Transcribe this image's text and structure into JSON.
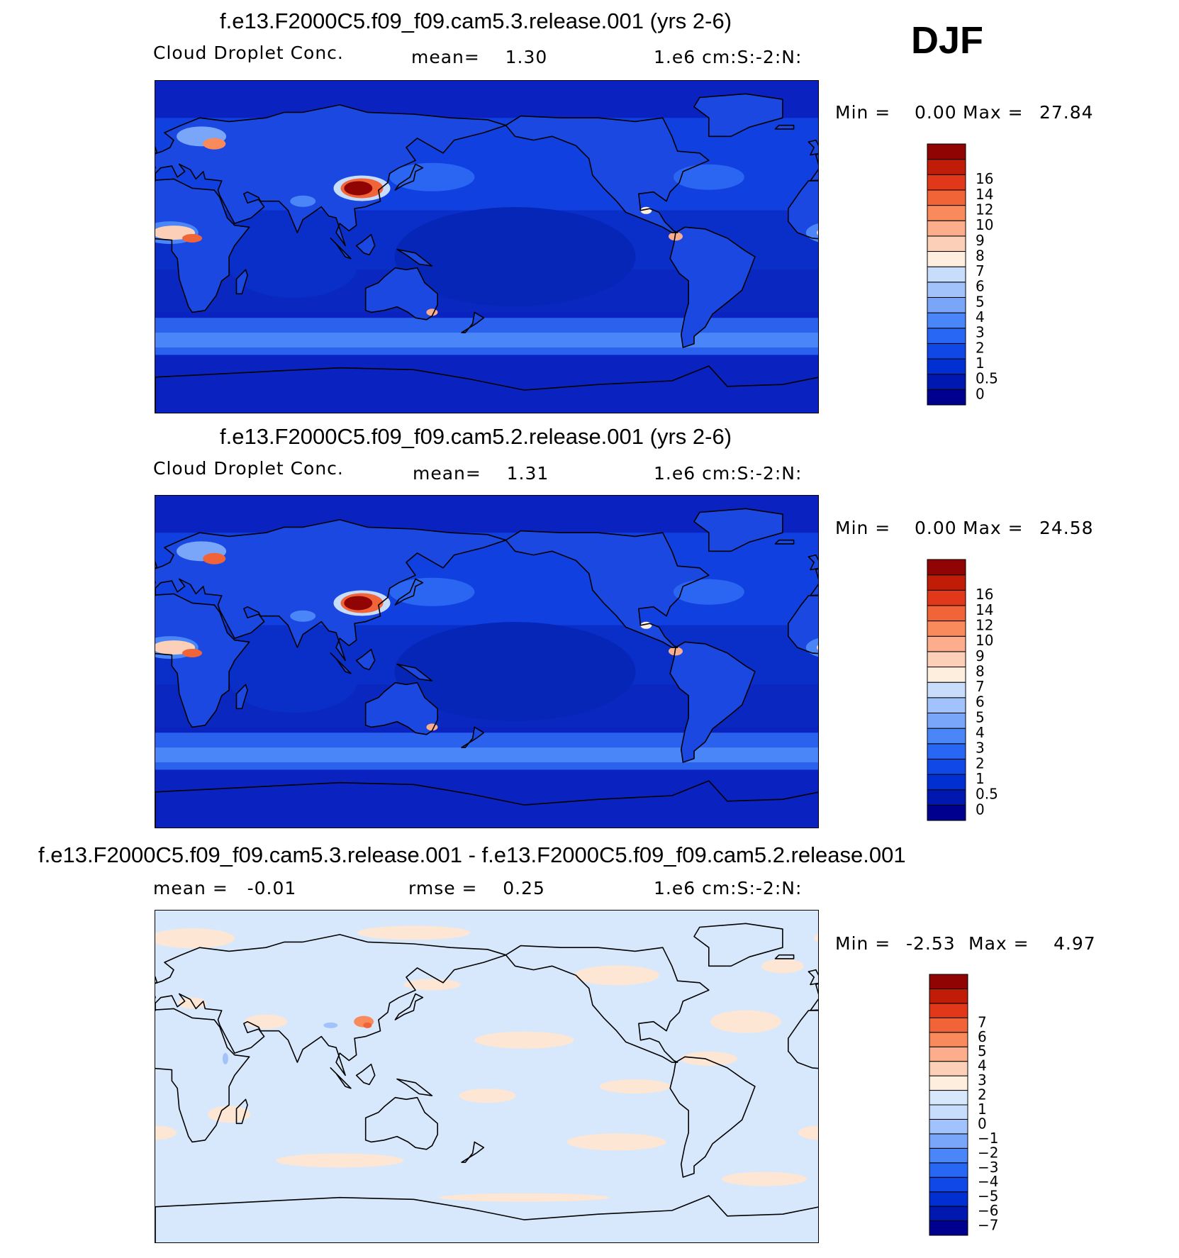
{
  "season": "DJF",
  "panels": [
    {
      "id": "p1",
      "title": "f.e13.F2000C5.f09_f09.cam5.3.release.001 (yrs 2-6)",
      "left_label": "Cloud Droplet Conc.",
      "center_label": "mean=    1.30",
      "right_label": "1.e6 cm:S:-2:N:",
      "minmax": {
        "min_label": "Min =",
        "min": "0.00",
        "max_label": "Max =",
        "max": "27.84"
      },
      "colorbar": {
        "colors": [
          "#00008f",
          "#0018b0",
          "#0030d2",
          "#1048e8",
          "#2866f4",
          "#4a86f8",
          "#7aa6fa",
          "#a2c2fc",
          "#c8dcfc",
          "#fdeede",
          "#fcd0b8",
          "#fcae8c",
          "#f88a5c",
          "#f06438",
          "#e03818",
          "#c01c08",
          "#900404"
        ],
        "labels": [
          "0",
          "0.5",
          "1",
          "2",
          "3",
          "4",
          "5",
          "6",
          "7",
          "8",
          "9",
          "10",
          "12",
          "14",
          "16"
        ]
      }
    },
    {
      "id": "p2",
      "title": "f.e13.F2000C5.f09_f09.cam5.2.release.001 (yrs 2-6)",
      "left_label": "Cloud Droplet Conc.",
      "center_label": "mean=    1.31",
      "right_label": "1.e6 cm:S:-2:N:",
      "minmax": {
        "min_label": "Min =",
        "min": "0.00",
        "max_label": "Max =",
        "max": "24.58"
      },
      "colorbar": {
        "colors": [
          "#00008f",
          "#0018b0",
          "#0030d2",
          "#1048e8",
          "#2866f4",
          "#4a86f8",
          "#7aa6fa",
          "#a2c2fc",
          "#c8dcfc",
          "#fdeede",
          "#fcd0b8",
          "#fcae8c",
          "#f88a5c",
          "#f06438",
          "#e03818",
          "#c01c08",
          "#900404"
        ],
        "labels": [
          "0",
          "0.5",
          "1",
          "2",
          "3",
          "4",
          "5",
          "6",
          "7",
          "8",
          "9",
          "10",
          "12",
          "14",
          "16"
        ]
      }
    },
    {
      "id": "p3",
      "title": "f.e13.F2000C5.f09_f09.cam5.3.release.001 - f.e13.F2000C5.f09_f09.cam5.2.release.001",
      "left_label": "mean =   -0.01",
      "center_label": "rmse =    0.25",
      "right_label": "1.e6 cm:S:-2:N:",
      "minmax": {
        "min_label": "Min =",
        "min": "-2.53",
        "max_label": "Max =",
        "max": "4.97"
      },
      "colorbar": {
        "colors": [
          "#00008f",
          "#0018b0",
          "#0030d2",
          "#1048e8",
          "#2866f4",
          "#4a86f8",
          "#7aa6fa",
          "#a2c2fc",
          "#c8dcfc",
          "#d8e8fc",
          "#fdeede",
          "#fcd0b8",
          "#fcae8c",
          "#f88a5c",
          "#f06438",
          "#e03818",
          "#c01c08",
          "#900404"
        ],
        "labels": [
          "-7",
          "-6",
          "-5",
          "-4",
          "-3",
          "-2",
          "-1",
          "0",
          "1",
          "2",
          "3",
          "4",
          "5",
          "6",
          "7"
        ]
      }
    }
  ],
  "palette": {
    "ocean_low": "#0a2ec8",
    "ocean_mid": "#2a62ee",
    "ocean_light": "#4a86f8",
    "land_low": "#1a48e0",
    "diff_pos": "#fde6d4",
    "diff_neg": "#d8e8fc"
  }
}
